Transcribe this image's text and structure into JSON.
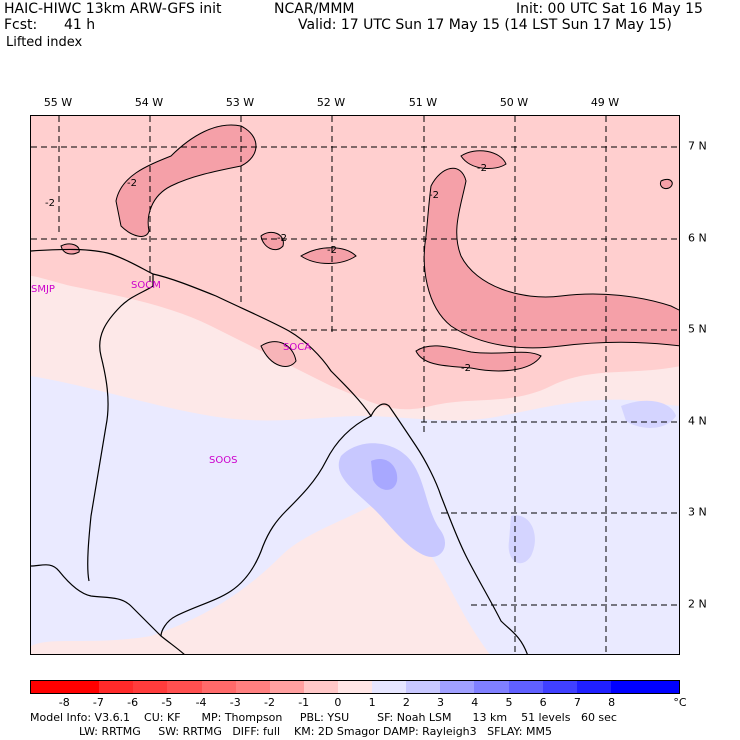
{
  "header": {
    "model_line": "HAIC-HIWC 13km ARW-GFS init",
    "org": "NCAR/MMM",
    "init": "Init: 00 UTC Sat 16 May 15",
    "fcst_label": "Fcst:",
    "fcst_value": "41 h",
    "valid": "Valid: 17 UTC Sun 17 May 15 (14 LST Sun 17 May 15)",
    "field": "Lifted index"
  },
  "lon_labels": [
    "55 W",
    "54 W",
    "53 W",
    "52 W",
    "51 W",
    "50 W",
    "49 W"
  ],
  "lat_labels": [
    "7 N",
    "6 N",
    "5 N",
    "4 N",
    "3 N",
    "2 N"
  ],
  "stations": [
    "SMJP",
    "SOCM",
    "SOCA",
    "SOOS"
  ],
  "contour_label": "-2",
  "colorbar": {
    "ticks": [
      "-8",
      "-7",
      "-6",
      "-5",
      "-4",
      "-3",
      "-2",
      "-1",
      "0",
      "1",
      "2",
      "3",
      "4",
      "5",
      "6",
      "7",
      "8"
    ],
    "unit": "°C",
    "colors": [
      "#ff0000",
      "#ff2a2a",
      "#ff3c3c",
      "#ff5050",
      "#ff6a6a",
      "#ff8080",
      "#ffa0a0",
      "#ffc8c8",
      "#ffe6e6",
      "#e6e6ff",
      "#c8c8ff",
      "#a0a0ff",
      "#8080ff",
      "#6060ff",
      "#4040ff",
      "#2020ff",
      "#0000ff"
    ]
  },
  "footer": {
    "line1": "Model Info: V3.6.1    CU: KF      MP: Thompson     PBL: YSU        SF: Noah LSM      13 km    51 levels   60 sec",
    "line2": "              LW: RRTMG     SW: RRTMG   DIFF: full    KM: 2D Smagor DAMP: Rayleigh3   SFLAY: MM5"
  }
}
